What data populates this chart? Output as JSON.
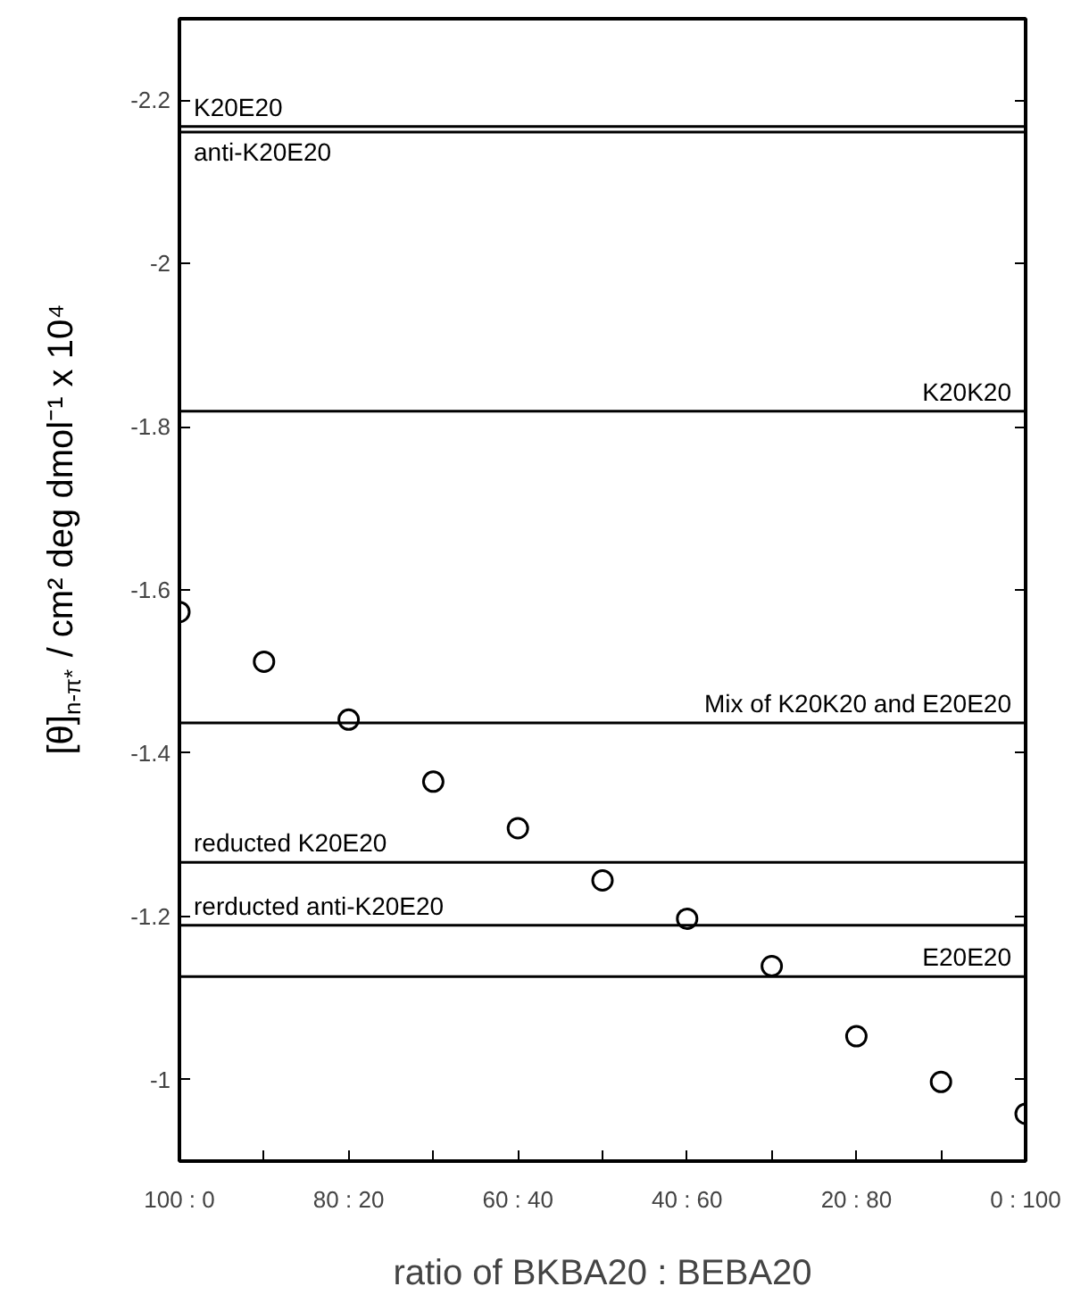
{
  "chart_data": {
    "type": "scatter",
    "xlabel": "ratio of BKBA20 : BEBA20",
    "ylabel": "[θ]$_{n-π*}$ / cm² deg dmol⁻¹ x 10⁴",
    "categories": [
      "100 : 0",
      null,
      "80 : 20",
      null,
      "60 : 40",
      null,
      "40 : 60",
      null,
      "20 : 80",
      null,
      "0 : 100"
    ],
    "values": [
      -1.573,
      -1.512,
      -1.441,
      -1.365,
      -1.308,
      -1.244,
      -1.197,
      -1.139,
      -1.053,
      -0.997,
      -0.958
    ],
    "color": "#000000",
    "marker": "circle",
    "grid": false,
    "ylim": [
      -0.9,
      -2.3
    ],
    "yticks": [
      -1,
      -1.2,
      -1.4,
      -1.6,
      -1.8,
      -2,
      -2.2
    ],
    "ref_lines": [
      {
        "axis": "y",
        "value": -2.168,
        "label": "K20E20",
        "color": "#000000"
      },
      {
        "axis": "y",
        "value": -2.161,
        "label": "anti-K20E20",
        "color": "#000000"
      },
      {
        "axis": "y",
        "value": -1.819,
        "label": "K20K20",
        "color": "#000000"
      },
      {
        "axis": "y",
        "value": -1.437,
        "label": "Mix of K20K20 and E20E20",
        "color": "#000000"
      },
      {
        "axis": "y",
        "value": -1.266,
        "label": "reducted K20E20",
        "color": "#000000"
      },
      {
        "axis": "y",
        "value": -1.189,
        "label": "rerducted anti-K20E20",
        "color": "#000000"
      },
      {
        "axis": "y",
        "value": -1.126,
        "label": "E20E20",
        "color": "#000000"
      }
    ]
  }
}
